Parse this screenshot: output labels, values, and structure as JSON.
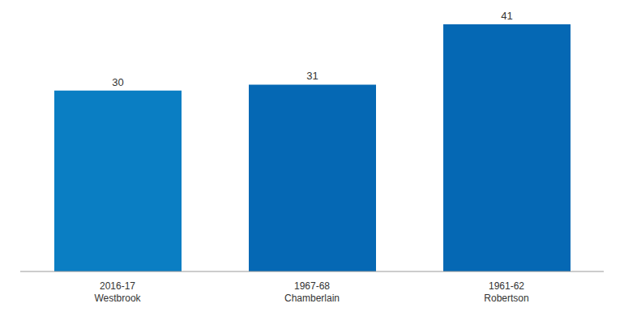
{
  "chart_data": {
    "type": "bar",
    "categories": [
      "2016-17\nWestbrook",
      "1967-68\nChamberlain",
      "1961-62\nRobertson"
    ],
    "values": [
      30,
      31,
      41
    ],
    "colors": [
      "#0a7ec3",
      "#0568b4",
      "#0568b4"
    ],
    "ylim": [
      0,
      41
    ],
    "data_labels": true,
    "tick_labels": "x",
    "grid": false
  }
}
